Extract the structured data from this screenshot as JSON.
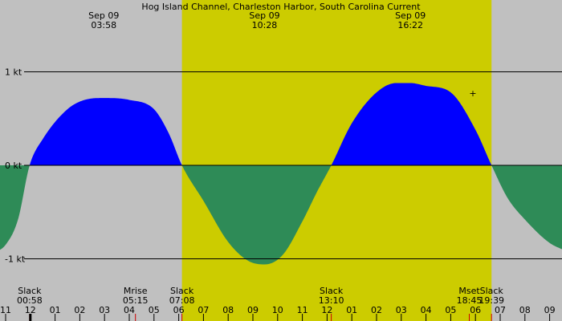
{
  "chart_data": {
    "type": "area",
    "title": "Hog Island Channel, Charleston Harbor, South Carolina Current",
    "ylim": [
      -1.2,
      1.0
    ],
    "xlim": [
      -0.5,
      22.7
    ],
    "x_hours_offset": 0,
    "y_ticks": [
      {
        "value": 1,
        "label": "1 kt"
      },
      {
        "value": 0,
        "label": "0 kt"
      },
      {
        "value": -1,
        "label": "-1 kt"
      }
    ],
    "x_ticks": [
      "11",
      "12",
      "01",
      "02",
      "03",
      "04",
      "05",
      "06",
      "07",
      "08",
      "09",
      "10",
      "11",
      "12",
      "01",
      "02",
      "03",
      "04",
      "05",
      "06",
      "07",
      "08",
      "09"
    ],
    "daylight": {
      "start": 7.13,
      "end": 19.65
    },
    "colors": {
      "background": "#c0c0c0",
      "daylight": "#cccc00",
      "flood": "#0000ff",
      "ebb": "#2e8b57",
      "gridline": "#000000",
      "slack_marker": "#cc0000"
    },
    "top_annotations": [
      {
        "date": "Sep 09",
        "time": "03:58",
        "hour": 3.97
      },
      {
        "date": "Sep 09",
        "time": "10:28",
        "hour": 10.47
      },
      {
        "date": "Sep 09",
        "time": "16:22",
        "hour": 16.37
      }
    ],
    "bottom_events": [
      {
        "name": "Slack",
        "time": "00:58",
        "hour": 0.97
      },
      {
        "name": "Mrise",
        "time": "05:15",
        "hour": 5.25
      },
      {
        "name": "Slack",
        "time": "07:08",
        "hour": 7.13
      },
      {
        "name": "Slack",
        "time": "13:10",
        "hour": 13.17
      },
      {
        "name": "Mset",
        "time": "18:45",
        "hour": 18.75
      },
      {
        "name": "Slack",
        "time": "19:39",
        "hour": 19.65
      }
    ],
    "series": [
      {
        "x": [
          -0.5,
          0.0,
          0.5,
          0.97,
          1.5,
          2.5,
          3.2,
          3.97,
          5.0,
          6.0,
          6.6,
          7.13,
          8.0,
          9.0,
          9.8,
          10.47,
          11.2,
          12.0,
          12.6,
          13.17,
          14.0,
          15.0,
          15.8,
          16.37,
          17.0,
          18.0,
          19.0,
          19.65,
          20.3,
          21.0,
          22.0,
          22.7
        ],
        "y": [
          -0.94,
          -0.85,
          -0.58,
          0.0,
          0.28,
          0.6,
          0.7,
          0.72,
          0.7,
          0.6,
          0.34,
          0.0,
          -0.38,
          -0.82,
          -1.02,
          -1.06,
          -0.96,
          -0.6,
          -0.28,
          0.0,
          0.45,
          0.78,
          0.88,
          0.88,
          0.85,
          0.78,
          0.38,
          0.0,
          -0.35,
          -0.58,
          -0.83,
          -0.92
        ]
      }
    ]
  }
}
